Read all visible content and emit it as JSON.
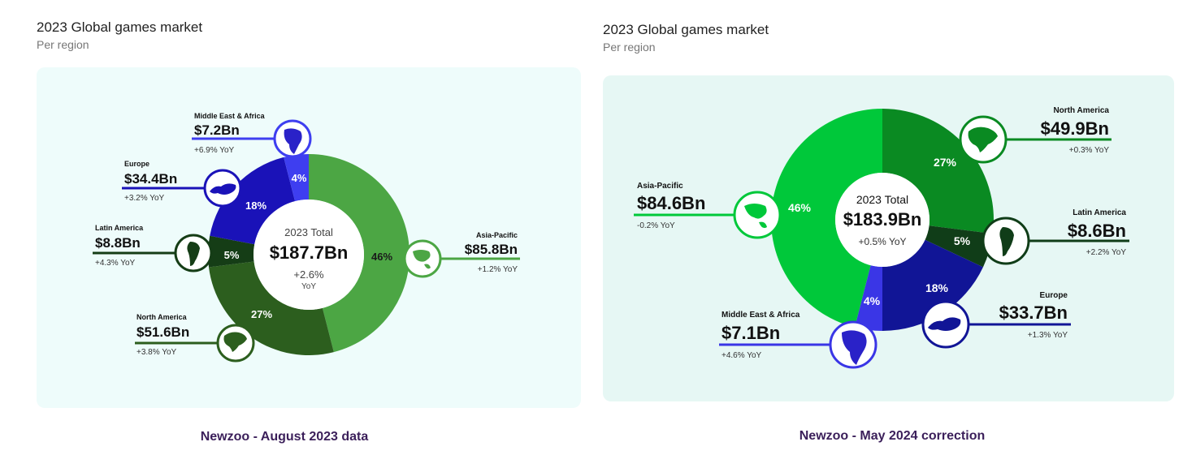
{
  "panels": [
    {
      "title": "2023 Global games market",
      "subtitle": "Per region",
      "caption": "Newzoo - August 2023 data",
      "card_color": "#eefcfb",
      "chart_data": {
        "type": "pie",
        "title": "2023 Global games market",
        "subtitle": "Per region",
        "center": {
          "label": "2023 Total",
          "value": "$187.7Bn",
          "growth": "+2.6%",
          "growth_unit": "YoY"
        },
        "slices": [
          {
            "name": "Asia-Pacific",
            "percent": 46,
            "pct_label": "46%",
            "value": "$85.8Bn",
            "yoy": "+1.2% YoY",
            "color": "#4ca644"
          },
          {
            "name": "North America",
            "percent": 27,
            "pct_label": "27%",
            "value": "$51.6Bn",
            "yoy": "+3.8% YoY",
            "color": "#2c5e1e"
          },
          {
            "name": "Latin America",
            "percent": 5,
            "pct_label": "5%",
            "value": "$8.8Bn",
            "yoy": "+4.3% YoY",
            "color": "#153d16"
          },
          {
            "name": "Europe",
            "percent": 18,
            "pct_label": "18%",
            "value": "$34.4Bn",
            "yoy": "+3.2% YoY",
            "color": "#1a12b8"
          },
          {
            "name": "Middle East & Africa",
            "percent": 4,
            "pct_label": "4%",
            "value": "$7.2Bn",
            "yoy": "+6.9% YoY",
            "color": "#3e3ef0"
          }
        ]
      }
    },
    {
      "title": "2023 Global games market",
      "subtitle": "Per region",
      "caption": "Newzoo - May 2024 correction",
      "card_color": "#e6f7f4",
      "chart_data": {
        "type": "pie",
        "title": "2023 Global games market",
        "subtitle": "Per region",
        "center": {
          "label": "2023 Total",
          "value": "$183.9Bn",
          "growth": "+0.5% YoY",
          "growth_unit": ""
        },
        "slices": [
          {
            "name": "North America",
            "percent": 27,
            "pct_label": "27%",
            "value": "$49.9Bn",
            "yoy": "+0.3% YoY",
            "color": "#0a8a22"
          },
          {
            "name": "Latin America",
            "percent": 5,
            "pct_label": "5%",
            "value": "$8.6Bn",
            "yoy": "+2.2% YoY",
            "color": "#103d18"
          },
          {
            "name": "Europe",
            "percent": 18,
            "pct_label": "18%",
            "value": "$33.7Bn",
            "yoy": "+1.3% YoY",
            "color": "#111596"
          },
          {
            "name": "Middle East & Africa",
            "percent": 4,
            "pct_label": "4%",
            "value": "$7.1Bn",
            "yoy": "+4.6% YoY",
            "color": "#3a36e6"
          },
          {
            "name": "Asia-Pacific",
            "percent": 46,
            "pct_label": "46%",
            "value": "$84.6Bn",
            "yoy": "-0.2% YoY",
            "color": "#00c83a"
          }
        ]
      }
    }
  ]
}
